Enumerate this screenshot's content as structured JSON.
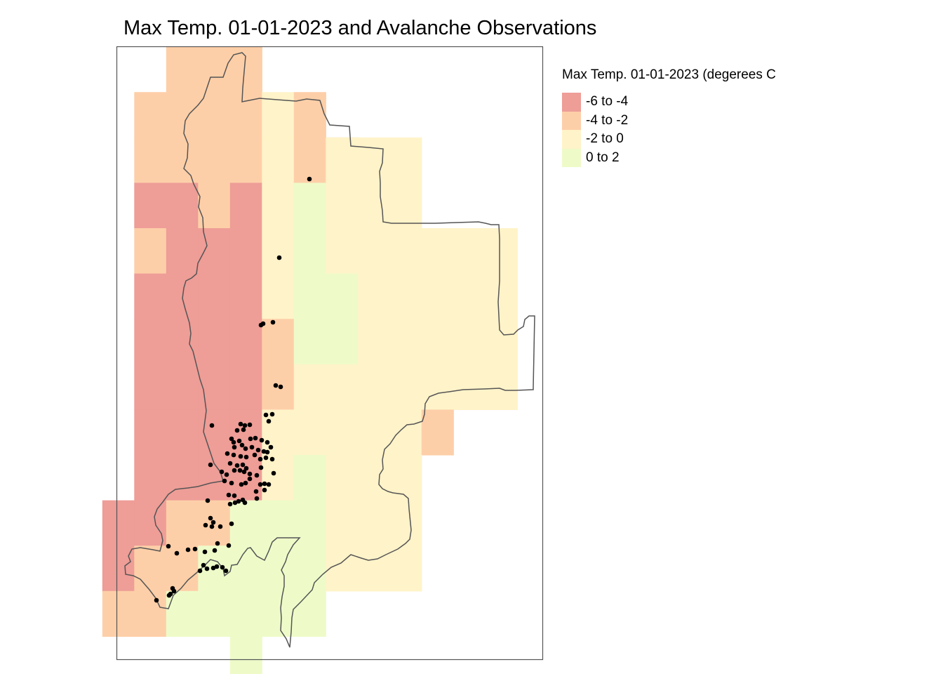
{
  "map": {
    "title": "Max Temp. 01-01-2023 and Avalanche Observations",
    "frame_color": "#555555",
    "boundary_color": "#555555"
  },
  "legend": {
    "title": "Max Temp. 01-01-2023 (degerees C",
    "classes": [
      {
        "label": "-6 to -4",
        "color": "#ee9d97"
      },
      {
        "label": "-4 to -2",
        "color": "#fdcfa8"
      },
      {
        "label": "-2 to 0",
        "color": "#fff3c9"
      },
      {
        "label": "0 to 2",
        "color": "#eefbc9"
      }
    ]
  },
  "observation_marker": {
    "color": "#000000",
    "meaning": "avalanche observation"
  }
}
